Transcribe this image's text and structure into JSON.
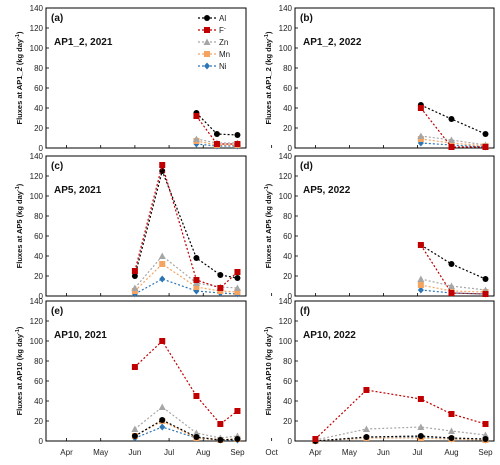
{
  "chart_data": {
    "type": "line",
    "shared": {
      "months": [
        "Apr",
        "May",
        "Jun",
        "Jul",
        "Aug",
        "Sep",
        "Oct"
      ],
      "ylim": [
        0,
        140
      ],
      "yticks": [
        0,
        20,
        40,
        60,
        80,
        100,
        120,
        140
      ]
    },
    "legend": {
      "placement": "top-right of panel (a)",
      "entries": [
        {
          "name": "Al",
          "color": "#000000",
          "marker": "circle"
        },
        {
          "name": "F",
          "sup": "-",
          "color": "#c00000",
          "marker": "square"
        },
        {
          "name": "Zn",
          "color": "#a6a6a6",
          "marker": "triangle"
        },
        {
          "name": "Mn",
          "color": "#f4a460",
          "marker": "square"
        },
        {
          "name": "Ni",
          "color": "#2e75b6",
          "marker": "diamond"
        }
      ]
    },
    "panels": [
      {
        "letter": "(a)",
        "title": "AP1_2, 2021",
        "ylabel": "Fluxes at AP1_2 (kg day",
        "ylabel_sup": "-1",
        "ylabel_end": ")",
        "series": [
          {
            "name": "Al",
            "x": [
              7.8,
              8.4,
              9.0
            ],
            "y": [
              35,
              14,
              13
            ]
          },
          {
            "name": "F",
            "x": [
              7.8,
              8.4,
              9.0
            ],
            "y": [
              32,
              4,
              4
            ]
          },
          {
            "name": "Zn",
            "x": [
              7.8,
              8.4,
              9.0
            ],
            "y": [
              9,
              5,
              5
            ]
          },
          {
            "name": "Mn",
            "x": [
              7.8,
              8.4,
              9.0
            ],
            "y": [
              7,
              3,
              3
            ]
          },
          {
            "name": "Ni",
            "x": [
              7.8,
              8.4,
              9.0
            ],
            "y": [
              4,
              2,
              2
            ]
          }
        ]
      },
      {
        "letter": "(b)",
        "title": "AP1_2, 2022",
        "ylabel": "Fluxes at AP1_2 (kg day",
        "ylabel_sup": "-1",
        "ylabel_end": ")",
        "series": [
          {
            "name": "Al",
            "x": [
              7.1,
              8.0,
              9.0
            ],
            "y": [
              43,
              29,
              14
            ]
          },
          {
            "name": "F",
            "x": [
              7.1,
              8.0,
              9.0
            ],
            "y": [
              40,
              1,
              1
            ]
          },
          {
            "name": "Zn",
            "x": [
              7.1,
              8.0,
              9.0
            ],
            "y": [
              12,
              8,
              3
            ]
          },
          {
            "name": "Mn",
            "x": [
              7.1,
              8.0,
              9.0
            ],
            "y": [
              9,
              5,
              2
            ]
          },
          {
            "name": "Ni",
            "x": [
              7.1,
              8.0,
              9.0
            ],
            "y": [
              5,
              3,
              1
            ]
          }
        ]
      },
      {
        "letter": "(c)",
        "title": "AP5, 2021",
        "ylabel": "Fluxes at AP5 (kg day",
        "ylabel_sup": "-1",
        "ylabel_end": ")",
        "series": [
          {
            "name": "Al",
            "x": [
              6.0,
              6.8,
              7.8,
              8.5,
              9.0
            ],
            "y": [
              20,
              125,
              38,
              21,
              18
            ]
          },
          {
            "name": "F",
            "x": [
              6.0,
              6.8,
              7.8,
              8.5,
              9.0
            ],
            "y": [
              25,
              131,
              16,
              8,
              24
            ]
          },
          {
            "name": "Zn",
            "x": [
              6.0,
              6.8,
              7.8,
              8.5,
              9.0
            ],
            "y": [
              8,
              40,
              13,
              9,
              8
            ]
          },
          {
            "name": "Mn",
            "x": [
              6.0,
              6.8,
              7.8,
              8.5,
              9.0
            ],
            "y": [
              5,
              32,
              9,
              5,
              4
            ]
          },
          {
            "name": "Ni",
            "x": [
              6.0,
              6.8,
              7.8,
              8.5,
              9.0
            ],
            "y": [
              2,
              17,
              5,
              3,
              2
            ]
          }
        ]
      },
      {
        "letter": "(d)",
        "title": "AP5, 2022",
        "ylabel": "Fluxes at AP5 (kg day",
        "ylabel_sup": "-1",
        "ylabel_end": ")",
        "series": [
          {
            "name": "Al",
            "x": [
              7.1,
              8.0,
              9.0
            ],
            "y": [
              51,
              32,
              17
            ]
          },
          {
            "name": "F",
            "x": [
              7.1,
              8.0,
              9.0
            ],
            "y": [
              51,
              3,
              2
            ]
          },
          {
            "name": "Zn",
            "x": [
              7.1,
              8.0,
              9.0
            ],
            "y": [
              17,
              10,
              6
            ]
          },
          {
            "name": "Mn",
            "x": [
              7.1,
              8.0,
              9.0
            ],
            "y": [
              11,
              5,
              4
            ]
          },
          {
            "name": "Ni",
            "x": [
              7.1,
              8.0,
              9.0
            ],
            "y": [
              6,
              3,
              2
            ]
          }
        ]
      },
      {
        "letter": "(e)",
        "title": "AP10, 2021",
        "ylabel": "Fluxes at AP10 (kg day",
        "ylabel_sup": "-1",
        "ylabel_end": ")",
        "series": [
          {
            "name": "Al",
            "x": [
              6.0,
              6.8,
              7.8,
              8.5,
              9.0
            ],
            "y": [
              5,
              21,
              4,
              1,
              2
            ]
          },
          {
            "name": "F",
            "x": [
              6.0,
              6.8,
              7.8,
              8.5,
              9.0
            ],
            "y": [
              74,
              100,
              45,
              17,
              30
            ]
          },
          {
            "name": "Zn",
            "x": [
              6.0,
              6.8,
              7.8,
              8.5,
              9.0
            ],
            "y": [
              12,
              34,
              8,
              3,
              5
            ]
          },
          {
            "name": "Mn",
            "x": [
              6.0,
              6.8,
              7.8,
              8.5,
              9.0
            ],
            "y": [
              5,
              20,
              3,
              1,
              2
            ]
          },
          {
            "name": "Ni",
            "x": [
              6.0,
              6.8,
              7.8,
              8.5,
              9.0
            ],
            "y": [
              3,
              14,
              3,
              1,
              1
            ]
          }
        ]
      },
      {
        "letter": "(f)",
        "title": "AP10, 2022",
        "ylabel": "Fluxes at AP10 (kg day",
        "ylabel_sup": "-1",
        "ylabel_end": ")",
        "series": [
          {
            "name": "Al",
            "x": [
              4.0,
              5.5,
              7.1,
              8.0,
              9.0
            ],
            "y": [
              0,
              4,
              5,
              3,
              2
            ]
          },
          {
            "name": "F",
            "x": [
              4.0,
              5.5,
              7.1,
              8.0,
              9.0
            ],
            "y": [
              2,
              51,
              42,
              27,
              17
            ]
          },
          {
            "name": "Zn",
            "x": [
              4.0,
              5.5,
              7.1,
              8.0,
              9.0
            ],
            "y": [
              1,
              12,
              14,
              10,
              6
            ]
          },
          {
            "name": "Mn",
            "x": [
              4.0,
              5.5,
              7.1,
              8.0,
              9.0
            ],
            "y": [
              0,
              3,
              3,
              2,
              1
            ]
          },
          {
            "name": "Ni",
            "x": [
              4.0,
              5.5,
              7.1,
              8.0,
              9.0
            ],
            "y": [
              0,
              3,
              4,
              2,
              1
            ]
          }
        ]
      }
    ]
  }
}
